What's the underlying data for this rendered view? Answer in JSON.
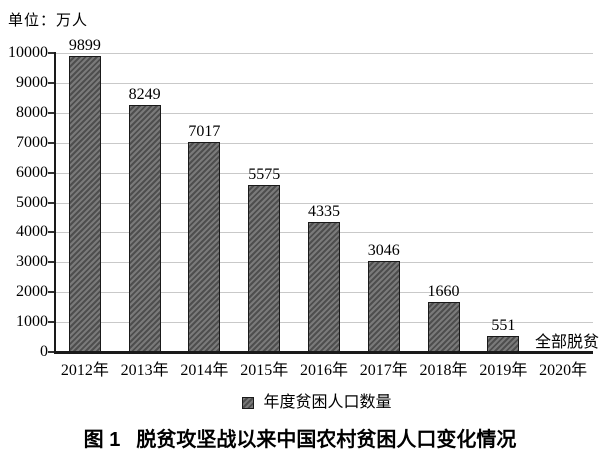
{
  "unit_label": "单位：万人",
  "chart_data": {
    "type": "bar",
    "title": "图1 脱贫攻坚战以来中国农村贫困人口变化情况",
    "categories": [
      "2012年",
      "2013年",
      "2014年",
      "2015年",
      "2016年",
      "2017年",
      "2018年",
      "2019年",
      "2020年"
    ],
    "series": [
      {
        "name": "年度贫困人口数量",
        "values": [
          9899,
          8249,
          7017,
          5575,
          4335,
          3046,
          1660,
          551,
          null
        ]
      }
    ],
    "bar_value_labels": [
      "9899",
      "8249",
      "7017",
      "5575",
      "4335",
      "3046",
      "1660",
      "551",
      ""
    ],
    "annotation_2020": "全部脱贫",
    "unit": "万人",
    "ylim": [
      0,
      10000
    ],
    "ytick_interval": 1000,
    "ytick_labels": [
      "0",
      "1000",
      "2000",
      "3000",
      "4000",
      "5000",
      "6000",
      "7000",
      "8000",
      "9000",
      "10000"
    ],
    "grid": "horizontal",
    "legend_position": "bottom"
  },
  "legend": {
    "label": "年度贫困人口数量"
  },
  "caption": {
    "fig_no": "图 1",
    "text": "脱贫攻坚战以来中国农村贫困人口变化情况"
  },
  "colors": {
    "background": "#ffffff",
    "bar_hatch_light": "#7a7a7a",
    "bar_hatch_dark": "#4e4e4e",
    "bar_border": "#1a1a1a",
    "gridline": "#c9c9c9",
    "axis": "#1a1a1a",
    "tick": "#333333",
    "text": "#000000"
  }
}
